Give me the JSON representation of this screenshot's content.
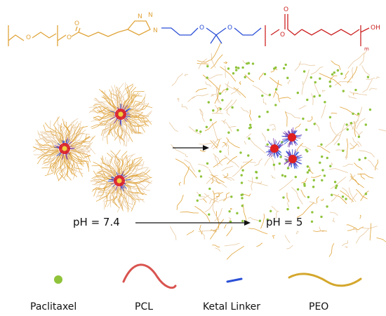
{
  "molecule": {
    "peo_o": "O",
    "ester_o_peo": "O",
    "ester_carbonyl_o": "O",
    "triazole_n_top": "N",
    "triazole_n_left": "N",
    "triazole_n_right": "N",
    "ketal_o1": "O",
    "ketal_o2": "O",
    "pcl_o": "O",
    "pcl_carbonyl_o": "O",
    "oh": "OH",
    "subscript_m": "m"
  },
  "labels": {
    "ph_before": "pH = 7.4",
    "ph_after": "pH = 5"
  },
  "legend": [
    {
      "label": "Paclitaxel",
      "icon": "green-dot-icon",
      "color": "#8fc33a"
    },
    {
      "label": "PCL",
      "icon": "red-curve-icon",
      "color": "#d9534f"
    },
    {
      "label": "Ketal Linker",
      "icon": "blue-line-icon",
      "color": "#2a4fd6"
    },
    {
      "label": "PEO",
      "icon": "orange-curve-icon",
      "color": "#d4a72c"
    }
  ],
  "colors": {
    "peo": "#e0a43a",
    "peo_light": "#e8c9a0",
    "pcl": "#cc2222",
    "linker": "#2a4fd6",
    "paclitaxel": "#8fc33a",
    "core": "#e02020",
    "core_accent": "#7a3fb0"
  }
}
